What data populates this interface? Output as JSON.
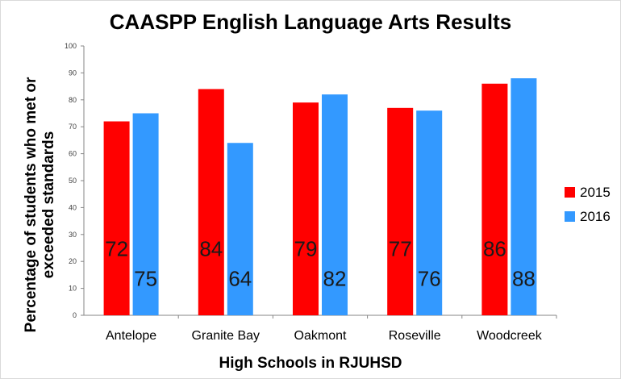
{
  "chart_data": {
    "type": "bar",
    "title": "CAASPP English Language Arts Results",
    "xlabel": "High Schools in RJUHSD",
    "ylabel": "Percentage of students who met or exceeded standards",
    "categories": [
      "Antelope",
      "Granite Bay",
      "Oakmont",
      "Roseville",
      "Woodcreek"
    ],
    "series": [
      {
        "name": "2015",
        "values": [
          72,
          84,
          79,
          77,
          86
        ],
        "color": "#ff0000"
      },
      {
        "name": "2016",
        "values": [
          75,
          64,
          82,
          76,
          88
        ],
        "color": "#3399ff"
      }
    ],
    "ylim": [
      0,
      100
    ],
    "yticks": [
      0,
      10,
      20,
      30,
      40,
      50,
      60,
      70,
      80,
      90,
      100
    ],
    "grid": false,
    "legend_position": "right"
  }
}
